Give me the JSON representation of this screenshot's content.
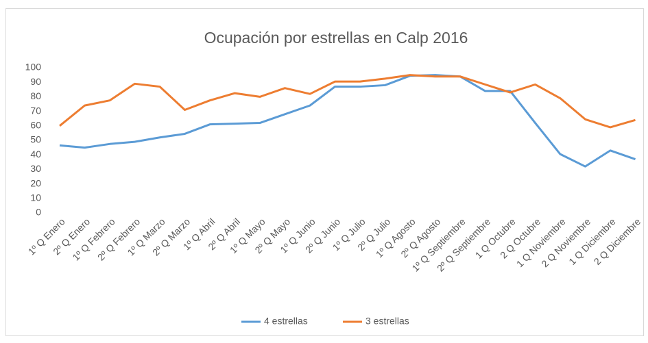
{
  "chart_data": {
    "type": "line",
    "title": "Ocupación por estrellas en Calp 2016",
    "categories": [
      "1º Q Enero",
      "2º Q Enero",
      "1º Q Febrero",
      "2º Q Febrero",
      "1º Q Marzo",
      "2º Q Marzo",
      "1º Q Abril",
      "2º Q Abril",
      "1º Q Mayo",
      "2º Q Mayo",
      "1º Q Junio",
      "2º Q Junio",
      "1º Q Julio",
      "2º Q Julio",
      "1º Q Agosto",
      "2º Q Agosto",
      "1º Q Septiembre",
      "2º Q Septiembre",
      "1 Q Octubre",
      "2 Q Octubre",
      "1 Q Noviembre",
      "2 Q Noviembre",
      "1 Q Diciembre",
      "2 Q Diciembre"
    ],
    "series": [
      {
        "name": "4 estrellas",
        "color": "#5b9bd5",
        "values": [
          46.5,
          45,
          47.5,
          49,
          52,
          54.5,
          61,
          61.5,
          62,
          68,
          74,
          87,
          87,
          88,
          94.5,
          95,
          94,
          84,
          84,
          62,
          40.5,
          32,
          43,
          37
        ]
      },
      {
        "name": "3 estrellas",
        "color": "#ed7d31",
        "values": [
          60,
          74,
          77.5,
          89,
          87,
          71,
          77.5,
          82.5,
          80,
          86,
          82,
          90.5,
          90.5,
          92.5,
          95,
          94,
          94,
          88.5,
          83,
          88.5,
          79,
          64.5,
          59,
          64
        ]
      }
    ],
    "ylim": [
      0,
      100
    ],
    "yticks": [
      0,
      10,
      20,
      30,
      40,
      50,
      60,
      70,
      80,
      90,
      100
    ],
    "grid": false,
    "legend": "bottom"
  }
}
